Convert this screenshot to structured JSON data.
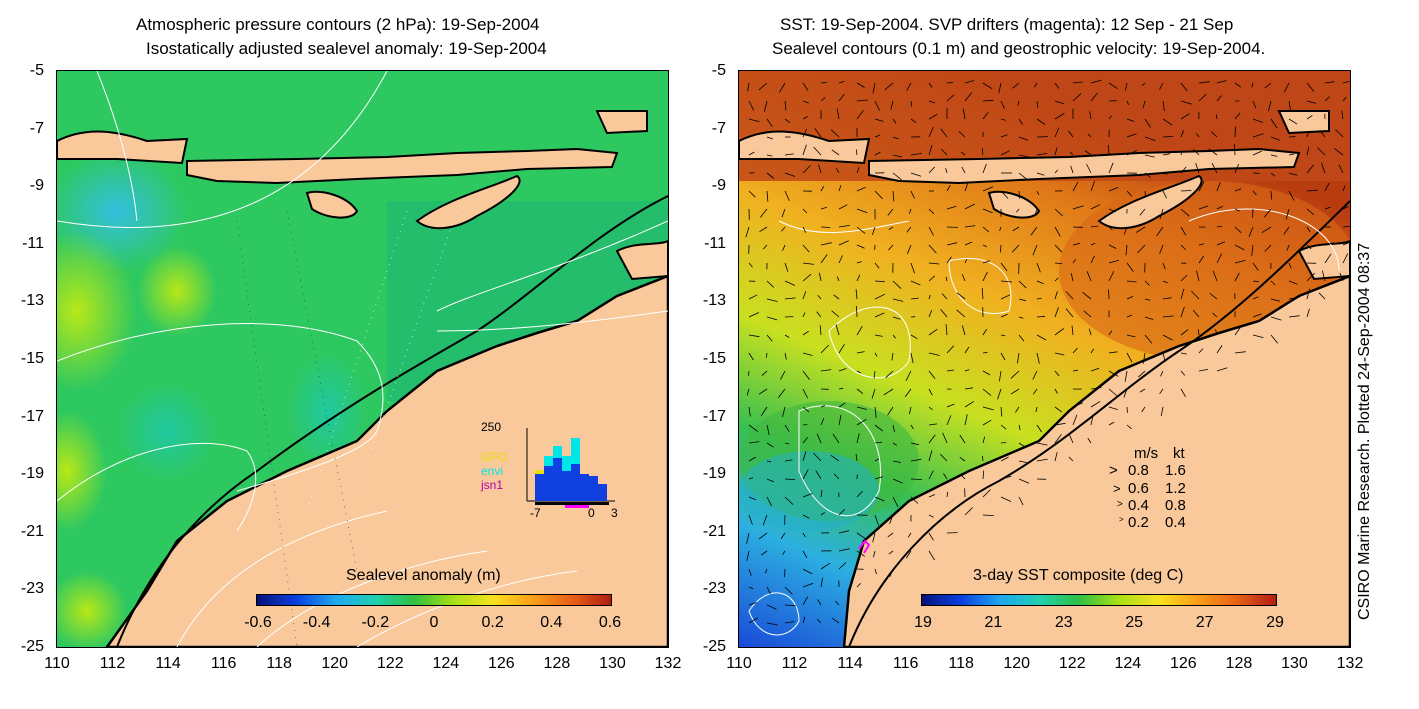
{
  "left_panel": {
    "title_line1": "Atmospheric pressure contours (2 hPa): 19-Sep-2004",
    "title_line2": "Isostatically adjusted sealevel anomaly: 19-Sep-2004",
    "colorbar": {
      "title": "Sealevel anomaly (m)",
      "ticks": [
        "-0.6",
        "-0.4",
        "-0.2",
        "0",
        "0.2",
        "0.4",
        "0.6"
      ],
      "range": [
        -0.6,
        0.6
      ]
    },
    "inset": {
      "ymax_label": "250",
      "x_labels": [
        "-7",
        "0",
        "3"
      ],
      "legend": [
        {
          "label": "GFO",
          "color": "#e8e000"
        },
        {
          "label": "envi",
          "color": "#00e5e5"
        },
        {
          "label": "jsn1",
          "color": "#b000b0"
        }
      ]
    }
  },
  "right_panel": {
    "title_line1": "SST: 19-Sep-2004. SVP drifters (magenta): 12 Sep - 21 Sep",
    "title_line2": "Sealevel contours (0.1 m) and geostrophic velocity: 19-Sep-2004.",
    "colorbar": {
      "title": "3-day SST composite (deg C)",
      "ticks": [
        "19",
        "21",
        "23",
        "25",
        "27",
        "29"
      ],
      "range": [
        19,
        29
      ]
    },
    "velocity_legend": {
      "header_ms": "m/s",
      "header_kt": "kt",
      "rows": [
        {
          "ms": "0.8",
          "kt": "1.6"
        },
        {
          "ms": "0.6",
          "kt": "1.2"
        },
        {
          "ms": "0.4",
          "kt": "0.8"
        },
        {
          "ms": "0.2",
          "kt": "0.4"
        }
      ]
    }
  },
  "axes": {
    "lat_ticks": [
      "-5",
      "-7",
      "-9",
      "-11",
      "-13",
      "-15",
      "-17",
      "-19",
      "-21",
      "-23",
      "-25"
    ],
    "lon_ticks": [
      "110",
      "112",
      "114",
      "116",
      "118",
      "120",
      "122",
      "124",
      "126",
      "128",
      "130",
      "132"
    ],
    "lat_range": [
      -25,
      -5
    ],
    "lon_range": [
      110,
      132
    ]
  },
  "credit": "CSIRO Marine Research. Plotted 24-Sep-2004 08:37",
  "colors": {
    "land": "#f9c89b",
    "coast": "#000000",
    "contour": "#ffffff",
    "drifter": "#ff00ff"
  }
}
